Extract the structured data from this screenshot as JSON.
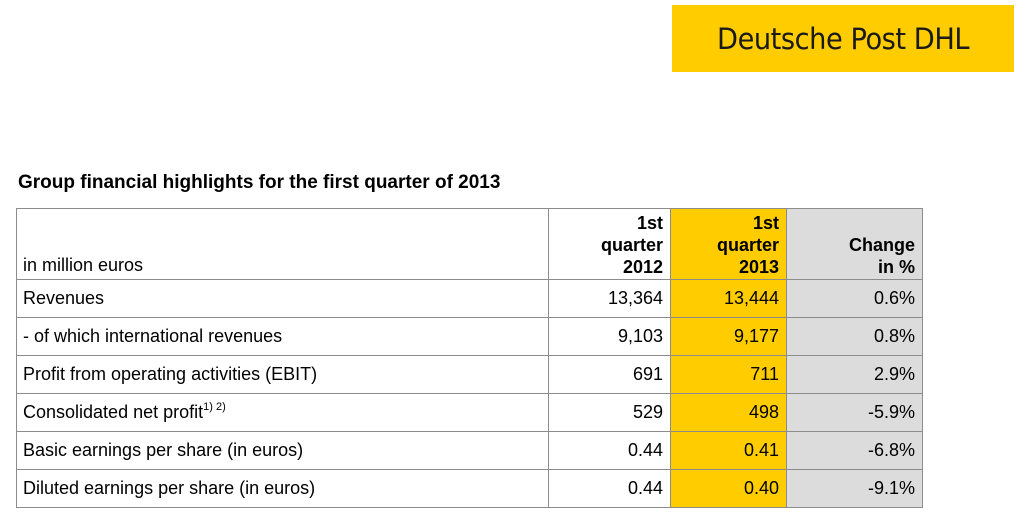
{
  "logo": {
    "text": "Deutsche Post DHL"
  },
  "title": "Group financial highlights for the first quarter of 2013",
  "table": {
    "unit_label": "in million euros",
    "columns": [
      {
        "line1": "1st",
        "line2": "quarter",
        "line3": "2012"
      },
      {
        "line1": "1st",
        "line2": "quarter",
        "line3": "2013"
      },
      {
        "line1": "Change",
        "line2": "in %"
      }
    ],
    "rows": [
      {
        "label": "Revenues",
        "sup": "",
        "q2012": "13,364",
        "q2013": "13,444",
        "change": "0.6%"
      },
      {
        "label": "- of which international revenues",
        "sup": "",
        "q2012": "9,103",
        "q2013": "9,177",
        "change": "0.8%"
      },
      {
        "label": "Profit from operating activities (EBIT)",
        "sup": "",
        "q2012": "691",
        "q2013": "711",
        "change": "2.9%"
      },
      {
        "label": "Consolidated net profit",
        "sup": "1) 2)",
        "q2012": "529",
        "q2013": "498",
        "change": "-5.9%"
      },
      {
        "label": "Basic earnings per share (in euros)",
        "sup": "",
        "q2012": "0.44",
        "q2013": "0.41",
        "change": "-6.8%"
      },
      {
        "label": "Diluted earnings per share (in euros)",
        "sup": "",
        "q2012": "0.44",
        "q2013": "0.40",
        "change": "-9.1%"
      }
    ]
  },
  "colors": {
    "brand_yellow": "#FFCC00",
    "change_column_gray": "#DCDCDC",
    "border": "#8c8c8c"
  }
}
